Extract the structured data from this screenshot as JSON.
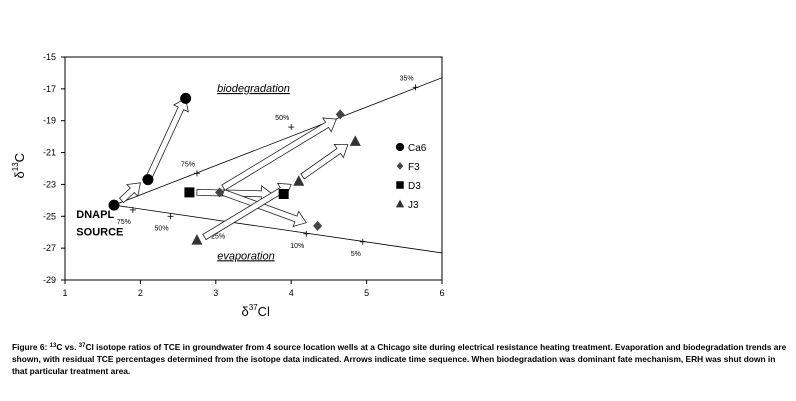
{
  "chart_data": {
    "type": "scatter",
    "title": "",
    "xlabel": "δ37Cl",
    "ylabel": "δ13C",
    "xlim": [
      1,
      6
    ],
    "ylim": [
      -29,
      -15
    ],
    "xticks": [
      "1",
      "2",
      "3",
      "4",
      "5",
      "6"
    ],
    "yticks": [
      "-15",
      "-17",
      "-19",
      "-21",
      "-23",
      "-25",
      "-27",
      "-29"
    ],
    "grid": false,
    "legend_position": "right",
    "source": {
      "label_line1": "DNAPL",
      "label_line2": "SOURCE",
      "x": 1.65,
      "y": -24.3
    },
    "series": [
      {
        "name": "Ca6",
        "marker": "circle",
        "color": "#000000",
        "points": [
          [
            1.65,
            -24.3
          ],
          [
            2.1,
            -22.7
          ],
          [
            2.6,
            -17.6
          ]
        ]
      },
      {
        "name": "F3",
        "marker": "diamond",
        "color": "#444444",
        "points": [
          [
            3.05,
            -23.5
          ],
          [
            4.65,
            -18.6
          ],
          [
            4.35,
            -25.6
          ]
        ]
      },
      {
        "name": "D3",
        "marker": "square",
        "color": "#000000",
        "points": [
          [
            2.65,
            -23.5
          ],
          [
            3.9,
            -23.6
          ]
        ]
      },
      {
        "name": "J3",
        "marker": "triangle",
        "color": "#333333",
        "points": [
          [
            2.75,
            -26.5
          ],
          [
            4.1,
            -22.8
          ],
          [
            4.85,
            -20.3
          ]
        ]
      }
    ],
    "trend_lines": [
      {
        "label": "biodegradation",
        "from": [
          1.65,
          -24.3
        ],
        "to": [
          6,
          -16.3
        ],
        "ticks": [
          {
            "label": "75%",
            "x": 2.75,
            "y": -22.3
          },
          {
            "label": "50%",
            "x": 4.0,
            "y": -19.4
          },
          {
            "label": "35%",
            "x": 5.65,
            "y": -16.9
          }
        ]
      },
      {
        "label": "evaporation",
        "from": [
          1.65,
          -24.3
        ],
        "to": [
          6,
          -27.3
        ],
        "ticks": [
          {
            "label": "75%",
            "x": 1.9,
            "y": -24.6
          },
          {
            "label": "50%",
            "x": 2.4,
            "y": -25.0
          },
          {
            "label": "25%",
            "x": 3.15,
            "y": -25.5
          },
          {
            "label": "10%",
            "x": 4.2,
            "y": -26.1
          },
          {
            "label": "5%",
            "x": 4.95,
            "y": -26.6
          }
        ]
      }
    ],
    "arrows": [
      {
        "from": [
          2.1,
          -22.7
        ],
        "to": [
          2.6,
          -17.6
        ]
      },
      {
        "from": [
          1.75,
          -24.0
        ],
        "to": [
          2.0,
          -22.9
        ]
      },
      {
        "from": [
          2.75,
          -23.5
        ],
        "to": [
          3.75,
          -23.6
        ]
      },
      {
        "from": [
          3.1,
          -23.5
        ],
        "to": [
          4.2,
          -25.4
        ]
      },
      {
        "from": [
          3.1,
          -23.2
        ],
        "to": [
          4.6,
          -18.9
        ]
      },
      {
        "from": [
          2.85,
          -26.3
        ],
        "to": [
          4.0,
          -23.0
        ]
      },
      {
        "from": [
          4.15,
          -22.5
        ],
        "to": [
          4.75,
          -20.5
        ]
      }
    ]
  },
  "caption": {
    "prefix": "Figure 6:  ",
    "c13_sup": "13",
    "c13_text": "C vs. ",
    "cl37_sup": "37",
    "rest": "Cl isotope ratios of TCE in groundwater from 4 source location wells at a Chicago site during electrical resistance heating treatment.  Evaporation and biodegradation trends are shown, with residual TCE percentages determined from the isotope data indicated.  Arrows indicate time sequence.  When biodegradation was dominant fate mechanism, ERH was shut down in that particular treatment area."
  }
}
